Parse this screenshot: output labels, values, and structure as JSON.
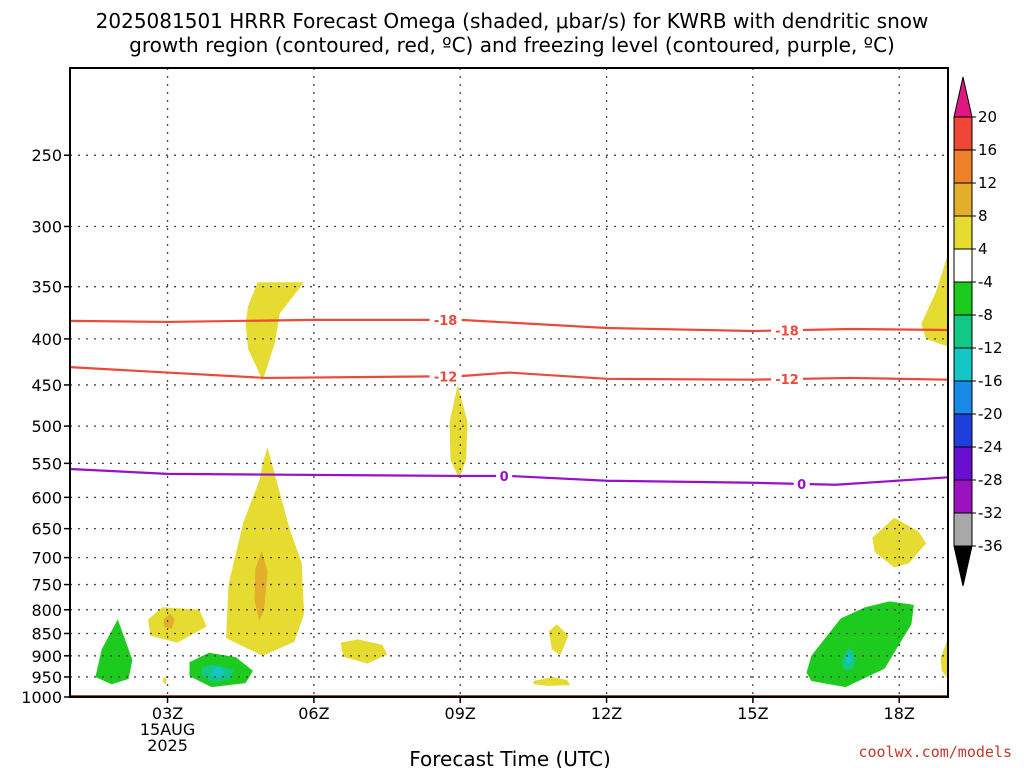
{
  "chart_data": {
    "type": "heatmap",
    "title": [
      "2025081501 HRRR Forecast Omega (shaded, μbar/s) for KWRB with dendritic snow",
      "growth region (contoured, red, ºC) and freezing level (contoured, purple, ºC)"
    ],
    "xlabel": "Forecast Time (UTC)",
    "credit": "coolwx.com/models",
    "x_range": [
      1,
      19
    ],
    "y_range": [
      1000,
      200
    ],
    "y_scale": "log (pressure)",
    "grid": true,
    "x_ticks": [
      {
        "x": 3,
        "label": "03Z"
      },
      {
        "x": 6,
        "label": "06Z"
      },
      {
        "x": 9,
        "label": "09Z"
      },
      {
        "x": 12,
        "label": "12Z"
      },
      {
        "x": 15,
        "label": "15Z"
      },
      {
        "x": 18,
        "label": "18Z"
      }
    ],
    "x_date_lines": [
      "15AUG",
      "2025"
    ],
    "y_ticks": [
      250,
      300,
      350,
      400,
      450,
      500,
      550,
      600,
      650,
      700,
      750,
      800,
      850,
      900,
      950,
      1000
    ],
    "colorbar": {
      "bins": [
        {
          "from": 20,
          "to": 24,
          "color": "#e0177e"
        },
        {
          "from": 16,
          "to": 20,
          "color": "#ee4637"
        },
        {
          "from": 12,
          "to": 16,
          "color": "#ee8129"
        },
        {
          "from": 8,
          "to": 12,
          "color": "#e3ae2c"
        },
        {
          "from": 4,
          "to": 8,
          "color": "#e6db31"
        },
        {
          "from": -4,
          "to": 4,
          "color": "#ffffff"
        },
        {
          "from": -8,
          "to": -4,
          "color": "#1ccb1e"
        },
        {
          "from": -12,
          "to": -8,
          "color": "#12c886"
        },
        {
          "from": -16,
          "to": -12,
          "color": "#14c6c6"
        },
        {
          "from": -20,
          "to": -16,
          "color": "#1a8ae8"
        },
        {
          "from": -24,
          "to": -20,
          "color": "#1f3fdc"
        },
        {
          "from": -28,
          "to": -24,
          "color": "#6a0fd0"
        },
        {
          "from": -32,
          "to": -28,
          "color": "#9b12c0"
        },
        {
          "from": -36,
          "to": -32,
          "color": "#a8a8a8"
        },
        {
          "from": -40,
          "to": -36,
          "color": "#000000"
        }
      ],
      "labels": [
        20,
        16,
        12,
        8,
        4,
        -4,
        -8,
        -12,
        -16,
        -20,
        -24,
        -28,
        -32,
        -36
      ]
    },
    "contours": [
      {
        "name": "-18",
        "color": "#ea4a3a",
        "label_x": [
          8.7,
          15.7
        ],
        "points": [
          [
            1,
            382
          ],
          [
            3,
            383
          ],
          [
            6,
            381
          ],
          [
            9,
            381
          ],
          [
            12,
            389
          ],
          [
            15,
            392
          ],
          [
            17,
            390
          ],
          [
            19,
            391
          ]
        ]
      },
      {
        "name": "-12",
        "color": "#ea4a3a",
        "label_x": [
          8.7,
          15.7
        ],
        "points": [
          [
            1,
            430
          ],
          [
            3,
            436
          ],
          [
            5,
            442
          ],
          [
            9,
            440
          ],
          [
            10,
            436
          ],
          [
            12,
            443
          ],
          [
            15,
            444
          ],
          [
            17,
            442
          ],
          [
            19,
            444
          ]
        ]
      },
      {
        "name": "0",
        "color": "#9810c8",
        "label_x": [
          9.9,
          16
        ],
        "points": [
          [
            1,
            558
          ],
          [
            3,
            565
          ],
          [
            5,
            566
          ],
          [
            9,
            568
          ],
          [
            10,
            568
          ],
          [
            12,
            575
          ],
          [
            15,
            578
          ],
          [
            16.7,
            581
          ],
          [
            19,
            570
          ]
        ]
      }
    ],
    "shaded_regions": [
      {
        "value_bin": "4 to 8",
        "color": "#e6db31",
        "points": [
          [
            4.65,
            368
          ],
          [
            4.85,
            346
          ],
          [
            5.8,
            346
          ],
          [
            5.3,
            375
          ],
          [
            5.2,
            404
          ],
          [
            4.95,
            445
          ],
          [
            4.65,
            410
          ],
          [
            4.6,
            385
          ]
        ]
      },
      {
        "value_bin": "4 to 8",
        "color": "#e6db31",
        "points": [
          [
            18.45,
            385
          ],
          [
            18.75,
            355
          ],
          [
            19,
            322
          ],
          [
            19,
            408
          ],
          [
            18.55,
            400
          ]
        ]
      },
      {
        "value_bin": "4 to 8",
        "color": "#e6db31",
        "points": [
          [
            8.78,
            495
          ],
          [
            8.95,
            450
          ],
          [
            9.15,
            495
          ],
          [
            9.12,
            545
          ],
          [
            8.98,
            572
          ],
          [
            8.8,
            545
          ]
        ]
      },
      {
        "value_bin": "4 to 8",
        "color": "#e6db31",
        "points": [
          [
            4.88,
            575
          ],
          [
            4.95,
            550
          ],
          [
            5.05,
            528
          ],
          [
            5.5,
            650
          ],
          [
            5.75,
            710
          ],
          [
            5.8,
            808
          ],
          [
            5.6,
            868
          ],
          [
            4.95,
            900
          ],
          [
            4.2,
            860
          ],
          [
            4.25,
            750
          ],
          [
            4.55,
            640
          ]
        ]
      },
      {
        "value_bin": "4 to 8",
        "color": "#e6db31",
        "points": [
          [
            2.6,
            820
          ],
          [
            2.9,
            795
          ],
          [
            3.65,
            800
          ],
          [
            3.8,
            835
          ],
          [
            3.2,
            870
          ],
          [
            2.65,
            855
          ]
        ]
      },
      {
        "value_bin": "4 to 8",
        "color": "#e6db31",
        "points": [
          [
            6.55,
            870
          ],
          [
            6.9,
            863
          ],
          [
            7.4,
            875
          ],
          [
            7.5,
            897
          ],
          [
            7.1,
            918
          ],
          [
            6.6,
            902
          ]
        ]
      },
      {
        "value_bin": "4 to 8",
        "color": "#e6db31",
        "points": [
          [
            10.82,
            845
          ],
          [
            10.98,
            830
          ],
          [
            11.22,
            855
          ],
          [
            11.05,
            898
          ],
          [
            10.88,
            885
          ]
        ]
      },
      {
        "value_bin": "4 to 8",
        "color": "#e6db31",
        "points": [
          [
            10.5,
            960
          ],
          [
            10.9,
            950
          ],
          [
            11.2,
            958
          ],
          [
            11.25,
            970
          ],
          [
            10.8,
            972
          ],
          [
            10.5,
            968
          ]
        ]
      },
      {
        "value_bin": "4 to 8",
        "color": "#e6db31",
        "points": [
          [
            2.92,
            950
          ],
          [
            2.98,
            955
          ],
          [
            2.97,
            968
          ],
          [
            2.9,
            962
          ]
        ]
      },
      {
        "value_bin": "4 to 8",
        "color": "#e6db31",
        "points": [
          [
            17.45,
            665
          ],
          [
            17.9,
            632
          ],
          [
            18.4,
            655
          ],
          [
            18.55,
            675
          ],
          [
            18.2,
            710
          ],
          [
            17.9,
            718
          ],
          [
            17.5,
            690
          ]
        ]
      },
      {
        "value_bin": "4 to 8",
        "color": "#e6db31",
        "points": [
          [
            18.85,
            905
          ],
          [
            19,
            860
          ],
          [
            19,
            955
          ],
          [
            18.87,
            935
          ]
        ]
      },
      {
        "value_bin": "8 to 12",
        "color": "#e3ae2c",
        "points": [
          [
            4.8,
            720
          ],
          [
            4.93,
            688
          ],
          [
            5.05,
            725
          ],
          [
            4.98,
            800
          ],
          [
            4.88,
            823
          ],
          [
            4.78,
            780
          ]
        ]
      },
      {
        "value_bin": "8 to 12",
        "color": "#e3ae2c",
        "points": [
          [
            2.92,
            820
          ],
          [
            3.05,
            808
          ],
          [
            3.15,
            820
          ],
          [
            3.08,
            840
          ],
          [
            2.92,
            835
          ]
        ]
      },
      {
        "value_bin": "-8 to -4",
        "color": "#1ccb1e",
        "points": [
          [
            1.65,
            885
          ],
          [
            1.98,
            820
          ],
          [
            2.28,
            910
          ],
          [
            2.2,
            955
          ],
          [
            1.85,
            968
          ],
          [
            1.52,
            950
          ]
        ]
      },
      {
        "value_bin": "-8 to -4",
        "color": "#1ccb1e",
        "points": [
          [
            3.45,
            915
          ],
          [
            3.85,
            893
          ],
          [
            4.4,
            903
          ],
          [
            4.75,
            935
          ],
          [
            4.6,
            965
          ],
          [
            3.9,
            975
          ],
          [
            3.45,
            948
          ]
        ]
      },
      {
        "value_bin": "-8 to -4",
        "color": "#1ccb1e",
        "points": [
          [
            16.2,
            900
          ],
          [
            16.8,
            818
          ],
          [
            17.3,
            795
          ],
          [
            17.8,
            783
          ],
          [
            18.3,
            790
          ],
          [
            18.25,
            830
          ],
          [
            17.7,
            930
          ],
          [
            16.9,
            975
          ],
          [
            16.2,
            960
          ],
          [
            16.1,
            940
          ]
        ]
      },
      {
        "value_bin": "-12 to -8",
        "color": "#12c886",
        "points": [
          [
            3.7,
            928
          ],
          [
            3.9,
            920
          ],
          [
            4.35,
            932
          ],
          [
            4.3,
            955
          ],
          [
            3.95,
            963
          ],
          [
            3.7,
            948
          ]
        ]
      },
      {
        "value_bin": "-12 to -8",
        "color": "#12c886",
        "points": [
          [
            16.88,
            895
          ],
          [
            16.98,
            880
          ],
          [
            17.1,
            900
          ],
          [
            17.05,
            930
          ],
          [
            16.9,
            935
          ],
          [
            16.82,
            920
          ]
        ]
      },
      {
        "value_bin": "-16 to -12",
        "color": "#14c6c6",
        "points": [
          [
            3.92,
            930
          ],
          [
            4.05,
            925
          ],
          [
            4.18,
            938
          ],
          [
            4.08,
            952
          ],
          [
            3.92,
            948
          ]
        ]
      },
      {
        "value_bin": "-16 to -12",
        "color": "#14c6c6",
        "points": [
          [
            16.92,
            900
          ],
          [
            16.98,
            896
          ],
          [
            17.05,
            908
          ],
          [
            16.98,
            918
          ],
          [
            16.9,
            912
          ]
        ]
      }
    ],
    "terrain": {
      "color": "#a0522d",
      "surface_pressure": 1000
    }
  }
}
